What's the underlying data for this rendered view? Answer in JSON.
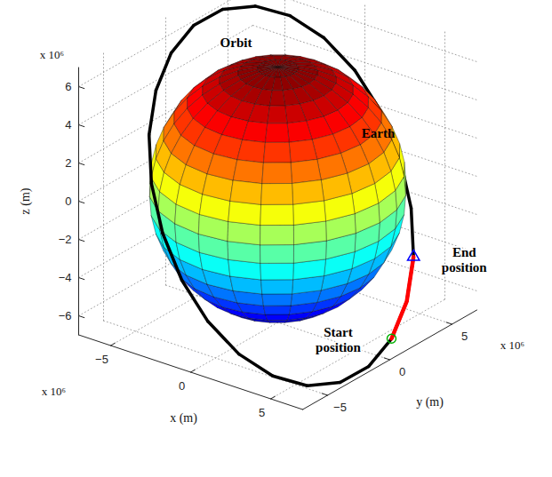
{
  "chart_data": {
    "type": "line3d",
    "x_label": "x (m)",
    "y_label": "y (m)",
    "z_label": "z (m)",
    "x_multiplier": "x 10⁶",
    "y_multiplier": "x 10⁶",
    "z_multiplier": "x 10⁶",
    "xlim": [
      -7,
      7
    ],
    "ylim": [
      -7,
      7
    ],
    "zlim": [
      -7,
      7
    ],
    "xticks": [
      -5,
      0,
      5
    ],
    "yticks": [
      -5,
      0,
      5
    ],
    "zticks": [
      -6,
      -4,
      -2,
      0,
      2,
      4,
      6
    ],
    "grid": true,
    "earth": {
      "label": "Earth",
      "radius": 6.371
    },
    "orbit": {
      "label": "Orbit",
      "color": "#000000",
      "x": [
        6.79,
        6.8,
        6.55,
        6.67,
        5.7,
        4.72,
        3.47,
        2.27,
        0.64,
        -1.3,
        -3.42,
        -5.3,
        -6.51,
        -6.64,
        -5.55,
        -5.39,
        -4.7,
        -4.0,
        -3.02,
        -1.82,
        -0.19,
        1.75,
        3.7,
        5.63
      ],
      "y": [
        -3.72,
        -1.43,
        0.72,
        1.79,
        3.58,
        4.65,
        5.37,
        5.37,
        5.37,
        5.37,
        5.37,
        5.01,
        3.94,
        1.79,
        -1.43,
        -2.86,
        -4.3,
        -5.01,
        -5.37,
        -5.37,
        -5.37,
        -5.37,
        -5.16,
        -4.87
      ],
      "z": [
        -6.86,
        -6.87,
        -6.29,
        -4.7,
        -3.31,
        -1.43,
        0.55,
        2.68,
        4.38,
        5.55,
        6.11,
        6.22,
        6.11,
        6.04,
        6.09,
        4.71,
        3.11,
        1.02,
        -1.17,
        -3.3,
        -5.0,
        -6.17,
        -6.85,
        -6.93
      ]
    },
    "track": {
      "color": "#ff0000",
      "x": [
        6.55,
        6.67,
        5.7
      ],
      "y": [
        0.72,
        1.79,
        3.58
      ],
      "z": [
        -6.29,
        -4.7,
        -3.31
      ]
    },
    "start": {
      "label": "Start position",
      "color": "#00b000",
      "marker": "circle",
      "x": 6.55,
      "y": 0.72,
      "z": -6.29
    },
    "end": {
      "label": "End position",
      "color": "#0000ff",
      "marker": "triangle",
      "x": 5.7,
      "y": 3.58,
      "z": -3.31
    }
  }
}
